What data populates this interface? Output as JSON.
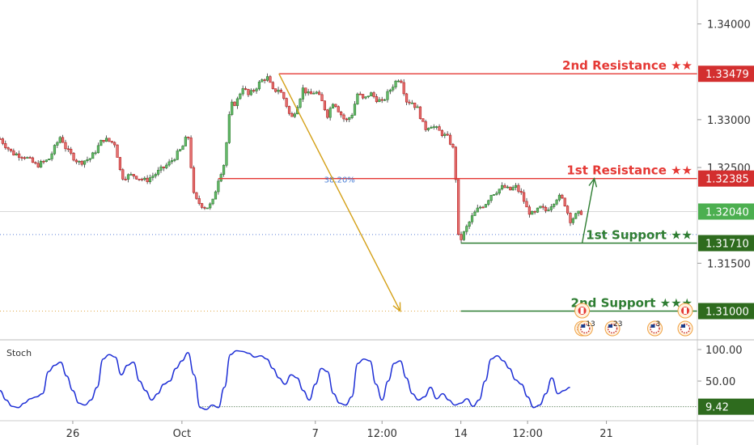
{
  "chart_data": {
    "type": "candlestick",
    "price_axis": {
      "range": [
        1.307,
        1.3425
      ],
      "ticks": [
        "1.34000",
        "1.33000",
        "1.32500",
        "1.31500"
      ]
    },
    "x_axis": {
      "ticks": [
        {
          "label": "26",
          "t": 12
        },
        {
          "label": "Oct",
          "t": 30
        },
        {
          "label": "7",
          "t": 52
        },
        {
          "label": "12:00",
          "t": 63
        },
        {
          "label": "14",
          "t": 76
        },
        {
          "label": "12:00",
          "t": 87
        },
        {
          "label": "21",
          "t": 100
        }
      ],
      "t_range": [
        0,
        115
      ]
    },
    "price_path": [
      [
        0,
        1.328
      ],
      [
        2,
        1.3265
      ],
      [
        4,
        1.3262
      ],
      [
        6,
        1.3252
      ],
      [
        8,
        1.3258
      ],
      [
        10,
        1.3283
      ],
      [
        11,
        1.3268
      ],
      [
        13,
        1.3255
      ],
      [
        15,
        1.326
      ],
      [
        17,
        1.328
      ],
      [
        19,
        1.3275
      ],
      [
        20,
        1.324
      ],
      [
        22,
        1.3242
      ],
      [
        24,
        1.3236
      ],
      [
        26,
        1.3245
      ],
      [
        28,
        1.3255
      ],
      [
        30,
        1.327
      ],
      [
        31,
        1.3285
      ],
      [
        32,
        1.3218
      ],
      [
        33,
        1.3212
      ],
      [
        34,
        1.3208
      ],
      [
        35,
        1.3212
      ],
      [
        36,
        1.3238
      ],
      [
        37,
        1.3255
      ],
      [
        38,
        1.3315
      ],
      [
        39,
        1.3318
      ],
      [
        40,
        1.3335
      ],
      [
        41,
        1.3325
      ],
      [
        42,
        1.3332
      ],
      [
        43,
        1.334
      ],
      [
        44,
        1.3345
      ],
      [
        45,
        1.333
      ],
      [
        46,
        1.3332
      ],
      [
        47,
        1.332
      ],
      [
        48,
        1.33
      ],
      [
        49,
        1.3315
      ],
      [
        50,
        1.3333
      ],
      [
        51,
        1.3325
      ],
      [
        52,
        1.333
      ],
      [
        53,
        1.332
      ],
      [
        54,
        1.3305
      ],
      [
        55,
        1.332
      ],
      [
        56,
        1.3308
      ],
      [
        57,
        1.3298
      ],
      [
        58,
        1.3305
      ],
      [
        59,
        1.3328
      ],
      [
        60,
        1.332
      ],
      [
        61,
        1.3328
      ],
      [
        62,
        1.3322
      ],
      [
        63,
        1.3318
      ],
      [
        64,
        1.3328
      ],
      [
        65,
        1.3338
      ],
      [
        66,
        1.3345
      ],
      [
        67,
        1.332
      ],
      [
        68,
        1.3318
      ],
      [
        69,
        1.331
      ],
      [
        70,
        1.329
      ],
      [
        71,
        1.3295
      ],
      [
        72,
        1.329
      ],
      [
        73,
        1.3285
      ],
      [
        74,
        1.328
      ],
      [
        75,
        1.3265
      ],
      [
        75.5,
        1.3178
      ],
      [
        76,
        1.3175
      ],
      [
        77,
        1.3188
      ],
      [
        78,
        1.32
      ],
      [
        79,
        1.3208
      ],
      [
        80,
        1.3212
      ],
      [
        81,
        1.3222
      ],
      [
        82,
        1.3226
      ],
      [
        83,
        1.323
      ],
      [
        84,
        1.3226
      ],
      [
        85,
        1.323
      ],
      [
        86,
        1.3222
      ],
      [
        87,
        1.3205
      ],
      [
        88,
        1.32
      ],
      [
        89,
        1.3208
      ],
      [
        90,
        1.3205
      ],
      [
        91,
        1.3212
      ],
      [
        92,
        1.322
      ],
      [
        93,
        1.3215
      ],
      [
        94,
        1.3195
      ],
      [
        95,
        1.32
      ],
      [
        96,
        1.3204
      ]
    ],
    "levels": [
      {
        "name": "2nd Resistance ★★",
        "price_label": "1.33479",
        "price": 1.33479,
        "color": "#e53935",
        "badge": "#d32f2f",
        "style": "solid",
        "t_start": 46
      },
      {
        "name": "1st Resistance ★★",
        "price_label": "1.32385",
        "price": 1.32385,
        "color": "#e53935",
        "badge": "#d32f2f",
        "style": "solid",
        "t_start": 36
      },
      {
        "name": "1st Support ★★",
        "price_label": "1.31710",
        "price": 1.3171,
        "color": "#2e7d32",
        "badge": "#2e6b1e",
        "style": "solid",
        "t_start": 76
      },
      {
        "name": "2nd Support ★★★",
        "price_label": "1.31000",
        "price": 1.31,
        "color": "#2e7d32",
        "badge": "#2e6b1e",
        "style": "solid",
        "t_start": 76
      }
    ],
    "current_price": {
      "label": "1.32040",
      "price": 1.3204,
      "badge": "#4caf50"
    },
    "fib_label": "38.20%",
    "fib_price": 1.32385,
    "dotted_level": {
      "price": 1.318,
      "color": "#5b7fd6"
    },
    "dotted_support": {
      "price": 1.31,
      "color": "#e0a94a"
    },
    "arrows": [
      {
        "from": [
          46,
          1.33479
        ],
        "to": [
          66,
          1.31
        ],
        "color": "#d4a017"
      },
      {
        "from": [
          96,
          1.3171
        ],
        "to": [
          98,
          1.32385
        ],
        "color": "#2e7d32"
      }
    ],
    "events": [
      {
        "t": 96,
        "row": 0,
        "flag": "ca",
        "count": ""
      },
      {
        "t": 96,
        "row": 1,
        "flag": "us",
        "count": ""
      },
      {
        "t": 101,
        "row": 1,
        "flag": "us",
        "count": "23"
      },
      {
        "t": 108,
        "row": 1,
        "flag": "us",
        "count": "3"
      },
      {
        "t": 96.5,
        "row": 1,
        "flag": "us",
        "count": "13"
      },
      {
        "t": 113,
        "row": 0,
        "flag": "ca",
        "count": ""
      },
      {
        "t": 113,
        "row": 1,
        "flag": "us",
        "count": ""
      }
    ],
    "oscillator": {
      "name": "Stoch",
      "range": [
        0,
        100
      ],
      "ticks": [
        "100.00",
        "50.00"
      ],
      "current_label": "9.42",
      "current_value": 9.42,
      "values": [
        [
          0,
          35
        ],
        [
          1,
          20
        ],
        [
          2,
          10
        ],
        [
          3,
          8
        ],
        [
          4,
          15
        ],
        [
          5,
          22
        ],
        [
          6,
          25
        ],
        [
          7,
          30
        ],
        [
          8,
          65
        ],
        [
          9,
          75
        ],
        [
          10,
          80
        ],
        [
          11,
          58
        ],
        [
          12,
          35
        ],
        [
          13,
          15
        ],
        [
          14,
          12
        ],
        [
          15,
          20
        ],
        [
          16,
          40
        ],
        [
          17,
          85
        ],
        [
          18,
          92
        ],
        [
          19,
          88
        ],
        [
          20,
          60
        ],
        [
          21,
          75
        ],
        [
          22,
          80
        ],
        [
          23,
          50
        ],
        [
          24,
          35
        ],
        [
          25,
          20
        ],
        [
          26,
          30
        ],
        [
          27,
          45
        ],
        [
          28,
          50
        ],
        [
          29,
          70
        ],
        [
          30,
          82
        ],
        [
          31,
          95
        ],
        [
          32,
          60
        ],
        [
          33,
          8
        ],
        [
          34,
          5
        ],
        [
          35,
          12
        ],
        [
          36,
          8
        ],
        [
          37,
          40
        ],
        [
          38,
          92
        ],
        [
          39,
          98
        ],
        [
          40,
          97
        ],
        [
          41,
          94
        ],
        [
          42,
          88
        ],
        [
          43,
          90
        ],
        [
          44,
          85
        ],
        [
          45,
          70
        ],
        [
          46,
          55
        ],
        [
          47,
          45
        ],
        [
          48,
          60
        ],
        [
          49,
          55
        ],
        [
          50,
          35
        ],
        [
          51,
          20
        ],
        [
          52,
          45
        ],
        [
          53,
          70
        ],
        [
          54,
          65
        ],
        [
          55,
          30
        ],
        [
          56,
          15
        ],
        [
          57,
          12
        ],
        [
          58,
          25
        ],
        [
          59,
          78
        ],
        [
          60,
          85
        ],
        [
          61,
          82
        ],
        [
          62,
          45
        ],
        [
          63,
          20
        ],
        [
          64,
          50
        ],
        [
          65,
          78
        ],
        [
          66,
          82
        ],
        [
          67,
          55
        ],
        [
          68,
          30
        ],
        [
          69,
          20
        ],
        [
          70,
          25
        ],
        [
          71,
          40
        ],
        [
          72,
          22
        ],
        [
          73,
          30
        ],
        [
          74,
          20
        ],
        [
          75,
          12
        ],
        [
          76,
          15
        ],
        [
          77,
          22
        ],
        [
          78,
          10
        ],
        [
          79,
          20
        ],
        [
          80,
          50
        ],
        [
          81,
          85
        ],
        [
          82,
          90
        ],
        [
          83,
          82
        ],
        [
          84,
          70
        ],
        [
          85,
          52
        ],
        [
          86,
          45
        ],
        [
          87,
          25
        ],
        [
          88,
          8
        ],
        [
          89,
          12
        ],
        [
          90,
          30
        ],
        [
          91,
          55
        ],
        [
          92,
          30
        ],
        [
          93,
          35
        ],
        [
          94,
          40
        ]
      ]
    }
  }
}
